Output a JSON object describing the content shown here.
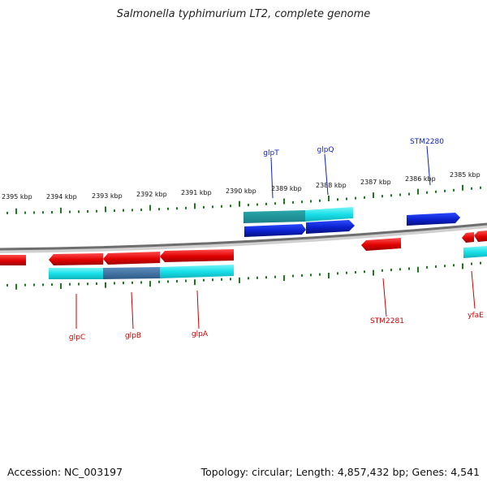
{
  "title": "Salmonella typhimurium LT2, complete genome",
  "footer": {
    "accession": "Accession: NC_003197",
    "summary": "Topology: circular; Length: 4,857,432 bp; Genes: 4,541"
  },
  "scale_labels": [
    "2395 kbp",
    "2394 kbp",
    "2393 kbp",
    "2392 kbp",
    "2391 kbp",
    "2390 kbp",
    "2389 kbp",
    "2388 kbp",
    "2387 kbp",
    "2386 kbp",
    "2385 kbp"
  ],
  "genes_top": [
    {
      "name": "glpT",
      "strand": "forward",
      "color": "#0a1fcc"
    },
    {
      "name": "glpQ",
      "strand": "forward",
      "color": "#0a1fcc"
    },
    {
      "name": "STM2280",
      "strand": "forward",
      "color": "#0a1fcc"
    }
  ],
  "genes_bottom": [
    {
      "name": "glpC",
      "strand": "reverse",
      "color": "#e10000"
    },
    {
      "name": "glpB",
      "strand": "reverse",
      "color": "#e10000"
    },
    {
      "name": "glpA",
      "strand": "reverse",
      "color": "#e10000"
    },
    {
      "name": "STM2281",
      "strand": "reverse",
      "color": "#e10000"
    },
    {
      "name": "yfaE",
      "strand": "reverse",
      "color": "#e10000"
    }
  ],
  "colors": {
    "forward_gene": "#0a1fcc",
    "reverse_gene": "#e10000",
    "operon": "#18e0e8",
    "operon_overlap": "#3a6fa0",
    "backbone": "#7a7a7a",
    "ticks": "#1f7a1f",
    "label_forward": "#0a1fcc",
    "label_reverse": "#cc0000"
  }
}
